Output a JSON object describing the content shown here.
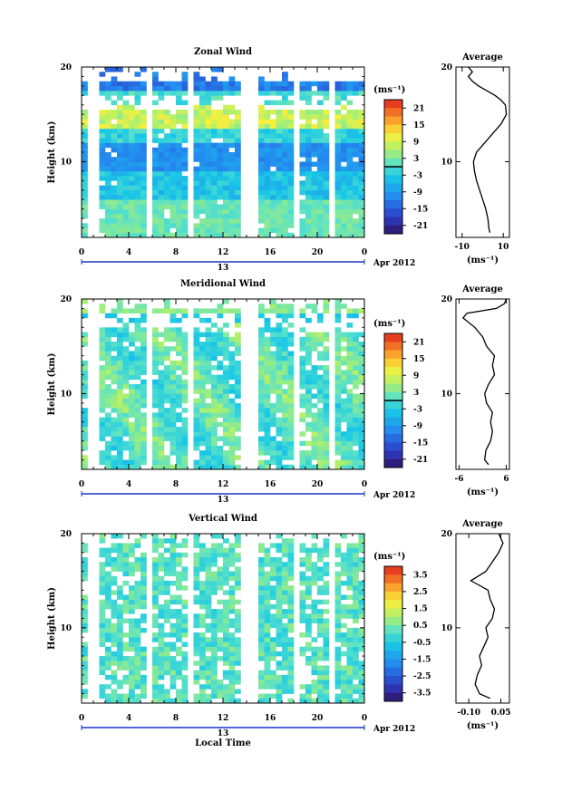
{
  "figure": {
    "xlabel": "Local Time",
    "date_label": "Apr 2012",
    "day_label": "13",
    "height_label": "Height (km)",
    "unit_label": "(ms⁻¹)",
    "average_title": "Average"
  },
  "chart_data": [
    {
      "type": "heatmap",
      "title": "Zonal Wind",
      "xlabel": "Local Time",
      "ylabel": "Height (km)",
      "xlim": [
        0,
        24
      ],
      "ylim": [
        2,
        20
      ],
      "xticks": [
        "0",
        "4",
        "8",
        "12",
        "16",
        "20",
        "0"
      ],
      "yticks": [
        "10",
        "20"
      ],
      "colorbar": {
        "label": "(ms⁻¹)",
        "range": [
          -24,
          24
        ],
        "ticks": [
          "21",
          "15",
          "9",
          "3",
          "-3",
          "-9",
          "-15",
          "-21"
        ],
        "contour_at": 0
      },
      "data_gaps_hours": [
        [
          0.4,
          1.4
        ],
        [
          5.4,
          6.0
        ],
        [
          9.0,
          9.4
        ],
        [
          13.6,
          14.8
        ],
        [
          18.0,
          18.4
        ],
        [
          21.0,
          21.4
        ]
      ],
      "profile": {
        "title": "Average",
        "xlabel": "(ms⁻¹)",
        "xlim": [
          -13,
          13
        ],
        "xticks": [
          "-10",
          "10"
        ],
        "yticks": [
          "10",
          "20"
        ],
        "heights": [
          2.5,
          3,
          4,
          5,
          6,
          7,
          8,
          9,
          10,
          11,
          12,
          13,
          14,
          15,
          16,
          16.5,
          17,
          17.5,
          18,
          18.5,
          19,
          19.5,
          20
        ],
        "values": [
          3.5,
          3,
          2.5,
          1.5,
          0,
          -1.5,
          -3,
          -4,
          -4.5,
          -3,
          1,
          5,
          9,
          11.5,
          11,
          9,
          6,
          2,
          -2,
          -5,
          -7,
          -5,
          -7
        ]
      }
    },
    {
      "type": "heatmap",
      "title": "Meridional Wind",
      "xlabel": "Local Time",
      "ylabel": "Height (km)",
      "xlim": [
        0,
        24
      ],
      "ylim": [
        2,
        20
      ],
      "xticks": [
        "0",
        "4",
        "8",
        "12",
        "16",
        "20",
        "0"
      ],
      "yticks": [
        "10",
        "20"
      ],
      "colorbar": {
        "label": "(ms⁻¹)",
        "range": [
          -24,
          24
        ],
        "ticks": [
          "21",
          "15",
          "9",
          "3",
          "-3",
          "-9",
          "-15",
          "-21"
        ],
        "contour_at": 0
      },
      "data_gaps_hours": [
        [
          0.4,
          1.4
        ],
        [
          5.4,
          6.0
        ],
        [
          9.0,
          9.4
        ],
        [
          13.6,
          14.8
        ],
        [
          18.0,
          18.4
        ],
        [
          21.0,
          21.4
        ]
      ],
      "profile": {
        "title": "Average",
        "xlabel": "(ms⁻¹)",
        "xlim": [
          -6.8,
          6.8
        ],
        "xticks": [
          "-6",
          "6"
        ],
        "yticks": [
          "10",
          "20"
        ],
        "heights": [
          2.5,
          3,
          4,
          5,
          6,
          7,
          8,
          9,
          10,
          11,
          12,
          13,
          14,
          15,
          16,
          17,
          18,
          18.5,
          19,
          19.5,
          20
        ],
        "values": [
          1.5,
          0.5,
          0.8,
          2,
          2.5,
          2,
          2.5,
          1,
          0.5,
          1.5,
          3,
          2.5,
          3,
          1,
          0,
          -2,
          -5,
          -4,
          3.5,
          5.5,
          6
        ]
      }
    },
    {
      "type": "heatmap",
      "title": "Vertical Wind",
      "xlabel": "Local Time",
      "ylabel": "Height (km)",
      "xlim": [
        0,
        24
      ],
      "ylim": [
        2,
        20
      ],
      "xticks": [
        "0",
        "4",
        "8",
        "12",
        "16",
        "20",
        "0"
      ],
      "yticks": [
        "10",
        "20"
      ],
      "colorbar": {
        "label": "(ms⁻¹)",
        "range": [
          -4,
          4
        ],
        "ticks": [
          "3.5",
          "2.5",
          "1.5",
          "0.5",
          "-0.5",
          "-1.5",
          "-2.5",
          "-3.5"
        ]
      },
      "data_gaps_hours": [
        [
          0.4,
          1.4
        ],
        [
          5.4,
          6.0
        ],
        [
          9.0,
          9.4
        ],
        [
          13.6,
          14.8
        ],
        [
          18.0,
          18.4
        ],
        [
          21.0,
          21.4
        ]
      ],
      "profile": {
        "title": "Average",
        "xlabel": "(ms⁻¹)",
        "xlim": [
          -0.16,
          0.09
        ],
        "xticks": [
          "-0.10",
          "0.05"
        ],
        "yticks": [
          "10",
          "20"
        ],
        "heights": [
          2.5,
          3,
          4,
          5,
          6,
          7,
          8,
          9,
          10,
          11,
          12,
          13,
          14,
          15,
          16,
          17,
          18,
          19,
          20
        ],
        "values": [
          0.0,
          -0.05,
          -0.07,
          -0.06,
          -0.04,
          -0.05,
          -0.03,
          -0.01,
          -0.02,
          0.01,
          0.02,
          0.0,
          -0.01,
          -0.09,
          -0.02,
          0.01,
          0.04,
          0.06,
          0.04
        ]
      }
    }
  ]
}
